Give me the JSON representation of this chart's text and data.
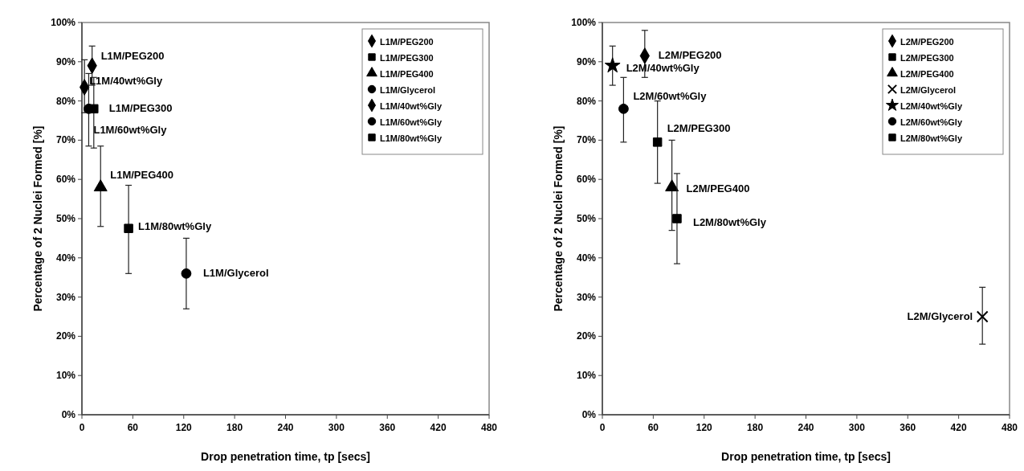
{
  "chart_data": [
    {
      "type": "scatter",
      "xlabel": "Drop penetration time, tp [secs]",
      "ylabel": "Percentage of 2 Nuclei Formed [%]",
      "xlim": [
        0,
        480
      ],
      "xticks": [
        0,
        60,
        120,
        180,
        240,
        300,
        360,
        420,
        480
      ],
      "ylim": [
        0,
        100
      ],
      "yticks": [
        {
          "value": 0,
          "label": "0%"
        },
        {
          "value": 10,
          "label": "10%"
        },
        {
          "value": 20,
          "label": "20%"
        },
        {
          "value": 30,
          "label": "30%"
        },
        {
          "value": 40,
          "label": "40%"
        },
        {
          "value": 50,
          "label": "50%"
        },
        {
          "value": 60,
          "label": "60%"
        },
        {
          "value": 70,
          "label": "70%"
        },
        {
          "value": 80,
          "label": "80%"
        },
        {
          "value": 90,
          "label": "90%"
        },
        {
          "value": 100,
          "label": "100%"
        }
      ],
      "grid": false,
      "legend": "top right",
      "series": [
        {
          "name": "L1M/PEG200",
          "color": "#000000",
          "marker": "diamond",
          "x": [
            12
          ],
          "values": [
            89
          ],
          "errors": [
            [
              84,
              94
            ]
          ]
        },
        {
          "name": "L1M/PEG300",
          "color": "#000000",
          "marker": "square",
          "x": [
            14
          ],
          "values": [
            78
          ],
          "errors": [
            [
              68,
              86
            ]
          ]
        },
        {
          "name": "L1M/PEG400",
          "color": "#000000",
          "marker": "triangle",
          "x": [
            22
          ],
          "values": [
            58
          ],
          "errors": [
            [
              48,
              68.5
            ]
          ]
        },
        {
          "name": "L1M/Glycerol",
          "color": "#000000",
          "marker": "circle",
          "x": [
            123
          ],
          "values": [
            36
          ],
          "errors": [
            [
              27,
              45
            ]
          ]
        },
        {
          "name": "L1M/40wt%Gly",
          "color": "#000000",
          "marker": "diamond",
          "x": [
            3
          ],
          "values": [
            83.5
          ],
          "errors": [
            [
              77,
              90.5
            ]
          ]
        },
        {
          "name": "L1M/60wt%Gly",
          "color": "#000000",
          "marker": "circle",
          "x": [
            8
          ],
          "values": [
            78
          ],
          "errors": [
            [
              68.5,
              87
            ]
          ]
        },
        {
          "name": "L1M/80wt%Gly",
          "color": "#000000",
          "marker": "square",
          "x": [
            55
          ],
          "values": [
            47.5
          ],
          "errors": [
            [
              36,
              58.5
            ]
          ]
        }
      ],
      "annotations": [
        {
          "text": "L1M/PEG200",
          "x": 12,
          "y": 89
        },
        {
          "text": "L1M/40wt%Gly",
          "x": 3,
          "y": 83.5
        },
        {
          "text": "L1M/PEG300",
          "x": 14,
          "y": 78
        },
        {
          "text": "L1M/60wt%Gly",
          "x": 8,
          "y": 78
        },
        {
          "text": "L1M/PEG400",
          "x": 22,
          "y": 58
        },
        {
          "text": "L1M/80wt%Gly",
          "x": 55,
          "y": 47.5
        },
        {
          "text": "L1M/Glycerol",
          "x": 123,
          "y": 36
        }
      ]
    },
    {
      "type": "scatter",
      "xlabel": "Drop penetration time, tp [secs]",
      "ylabel": "Percentage of 2 Nuclei Formed [%]",
      "xlim": [
        0,
        480
      ],
      "xticks": [
        0,
        60,
        120,
        180,
        240,
        300,
        360,
        420,
        480
      ],
      "ylim": [
        0,
        100
      ],
      "yticks": [
        {
          "value": 0,
          "label": "0%"
        },
        {
          "value": 10,
          "label": "10%"
        },
        {
          "value": 20,
          "label": "20%"
        },
        {
          "value": 30,
          "label": "30%"
        },
        {
          "value": 40,
          "label": "40%"
        },
        {
          "value": 50,
          "label": "50%"
        },
        {
          "value": 60,
          "label": "60%"
        },
        {
          "value": 70,
          "label": "70%"
        },
        {
          "value": 80,
          "label": "80%"
        },
        {
          "value": 90,
          "label": "90%"
        },
        {
          "value": 100,
          "label": "100%"
        }
      ],
      "grid": false,
      "legend": "top right",
      "series": [
        {
          "name": "L2M/PEG200",
          "color": "#000000",
          "marker": "diamond",
          "x": [
            50
          ],
          "values": [
            91.5
          ],
          "errors": [
            [
              86,
              98
            ]
          ]
        },
        {
          "name": "L2M/PEG300",
          "color": "#000000",
          "marker": "square",
          "x": [
            65
          ],
          "values": [
            69.5
          ],
          "errors": [
            [
              59,
              80
            ]
          ]
        },
        {
          "name": "L2M/PEG400",
          "color": "#000000",
          "marker": "triangle",
          "x": [
            82
          ],
          "values": [
            58
          ],
          "errors": [
            [
              47,
              70
            ]
          ]
        },
        {
          "name": "L2M/Glycerol",
          "color": "#000000",
          "marker": "cross",
          "x": [
            448
          ],
          "values": [
            25
          ],
          "errors": [
            [
              18,
              32.5
            ]
          ]
        },
        {
          "name": "L2M/40wt%Gly",
          "color": "#000000",
          "marker": "star",
          "x": [
            12
          ],
          "values": [
            89
          ],
          "errors": [
            [
              84,
              94
            ]
          ]
        },
        {
          "name": "L2M/60wt%Gly",
          "color": "#000000",
          "marker": "circle",
          "x": [
            25
          ],
          "values": [
            78
          ],
          "errors": [
            [
              69.5,
              86
            ]
          ]
        },
        {
          "name": "L2M/80wt%Gly",
          "color": "#000000",
          "marker": "square",
          "x": [
            88
          ],
          "values": [
            50
          ],
          "errors": [
            [
              38.5,
              61.5
            ]
          ]
        }
      ],
      "annotations": [
        {
          "text": "L2M/PEG200",
          "x": 50,
          "y": 91.5
        },
        {
          "text": "L2M/40wt%Gly",
          "x": 12,
          "y": 89
        },
        {
          "text": "L2M/60wt%Gly",
          "x": 25,
          "y": 78
        },
        {
          "text": "L2M/PEG300",
          "x": 65,
          "y": 69.5
        },
        {
          "text": "L2M/PEG400",
          "x": 82,
          "y": 58
        },
        {
          "text": "L2M/80wt%Gly",
          "x": 88,
          "y": 50
        },
        {
          "text": "L2M/Glycerol",
          "x": 448,
          "y": 25
        }
      ]
    }
  ]
}
